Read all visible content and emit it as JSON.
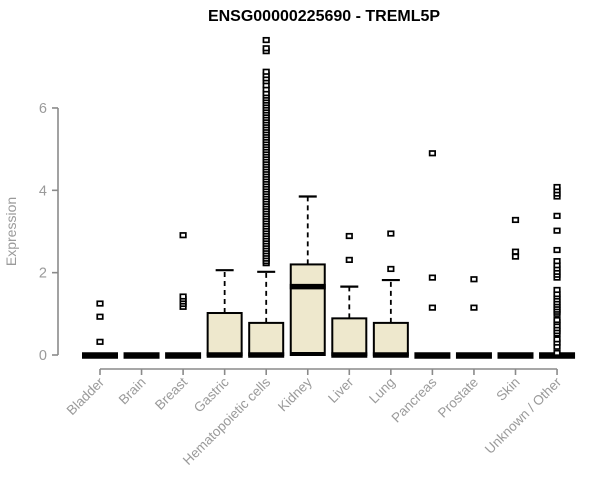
{
  "title": "ENSG00000225690 - TREML5P",
  "chart_data": {
    "type": "boxplot",
    "title": "ENSG00000225690 - TREML5P",
    "ylabel": "Expression",
    "yticks": [
      0,
      2,
      4,
      6
    ],
    "ylim": [
      0,
      7.8
    ],
    "grid": false,
    "colors": {
      "box_fill": "#EEE8CD",
      "box_stroke": "#000000",
      "axis_line": "#8a8a8a",
      "axis_text": "#9a9a9a",
      "title_text": "#000000"
    },
    "categories": [
      "Bladder",
      "Brain",
      "Breast",
      "Gastric",
      "Hematopoietic cells",
      "Kidney",
      "Liver",
      "Lung",
      "Pancreas",
      "Prostate",
      "Skin",
      "Unknown / Other"
    ],
    "series": [
      {
        "name": "Bladder",
        "q1": 0,
        "median": 0,
        "q3": 0,
        "whisker_low": 0,
        "whisker_high": 0,
        "outliers": [
          0.32,
          0.93,
          1.25
        ]
      },
      {
        "name": "Brain",
        "q1": 0,
        "median": 0,
        "q3": 0,
        "whisker_low": 0,
        "whisker_high": 0,
        "outliers": []
      },
      {
        "name": "Breast",
        "q1": 0,
        "median": 0,
        "q3": 0,
        "whisker_low": 0,
        "whisker_high": 0,
        "outliers": [
          1.17,
          1.24,
          1.3,
          1.36,
          1.42,
          2.91
        ]
      },
      {
        "name": "Gastric",
        "q1": 0,
        "median": 0,
        "q3": 1.02,
        "whisker_low": 0,
        "whisker_high": 2.06,
        "outliers": []
      },
      {
        "name": "Hematopoietic cells",
        "q1": 0,
        "median": 0,
        "q3": 0.78,
        "whisker_low": 0,
        "whisker_high": 2.02,
        "outliers": [
          2.23,
          2.28,
          2.34,
          2.4,
          2.46,
          2.52,
          2.58,
          2.64,
          2.7,
          2.76,
          2.82,
          2.88,
          2.94,
          3.0,
          3.06,
          3.12,
          3.18,
          3.24,
          3.3,
          3.36,
          3.42,
          3.48,
          3.54,
          3.6,
          3.66,
          3.72,
          3.78,
          3.84,
          3.9,
          3.96,
          4.02,
          4.08,
          4.14,
          4.2,
          4.26,
          4.32,
          4.38,
          4.44,
          4.5,
          4.56,
          4.62,
          4.68,
          4.74,
          4.8,
          4.86,
          4.92,
          4.98,
          5.04,
          5.1,
          5.16,
          5.22,
          5.28,
          5.34,
          5.4,
          5.46,
          5.52,
          5.58,
          5.64,
          5.7,
          5.76,
          5.82,
          5.88,
          5.94,
          6.0,
          6.06,
          6.12,
          6.18,
          6.24,
          6.3,
          6.36,
          6.45,
          6.55,
          6.65,
          6.72,
          6.8,
          6.88,
          7.38,
          7.45,
          7.65
        ]
      },
      {
        "name": "Kidney",
        "q1": 0,
        "median": 1.66,
        "q3": 2.2,
        "whisker_low": 0,
        "whisker_high": 3.85,
        "outliers": []
      },
      {
        "name": "Liver",
        "q1": 0,
        "median": 0,
        "q3": 0.89,
        "whisker_low": 0,
        "whisker_high": 1.66,
        "outliers": [
          2.31,
          2.89
        ]
      },
      {
        "name": "Lung",
        "q1": 0,
        "median": 0,
        "q3": 0.78,
        "whisker_low": 0,
        "whisker_high": 1.82,
        "outliers": [
          2.09,
          2.95
        ]
      },
      {
        "name": "Pancreas",
        "q1": 0,
        "median": 0,
        "q3": 0,
        "whisker_low": 0,
        "whisker_high": 0,
        "outliers": [
          1.15,
          1.88,
          4.9
        ]
      },
      {
        "name": "Prostate",
        "q1": 0,
        "median": 0,
        "q3": 0,
        "whisker_low": 0,
        "whisker_high": 0,
        "outliers": [
          1.15,
          1.84
        ]
      },
      {
        "name": "Skin",
        "q1": 0,
        "median": 0,
        "q3": 0,
        "whisker_low": 0,
        "whisker_high": 0,
        "outliers": [
          2.39,
          2.51,
          3.28
        ]
      },
      {
        "name": "Unknown / Other",
        "q1": 0,
        "median": 0,
        "q3": 0,
        "whisker_low": 0,
        "whisker_high": 0,
        "outliers": [
          0.05,
          0.2,
          0.3,
          0.38,
          0.52,
          0.58,
          0.65,
          0.72,
          0.8,
          0.85,
          1.0,
          1.05,
          1.1,
          1.16,
          1.22,
          1.28,
          1.35,
          1.42,
          1.48,
          1.58,
          1.88,
          1.95,
          2.02,
          2.1,
          2.18,
          2.28,
          2.55,
          3.02,
          3.38,
          3.85,
          3.92,
          4.0,
          4.08
        ]
      }
    ]
  }
}
